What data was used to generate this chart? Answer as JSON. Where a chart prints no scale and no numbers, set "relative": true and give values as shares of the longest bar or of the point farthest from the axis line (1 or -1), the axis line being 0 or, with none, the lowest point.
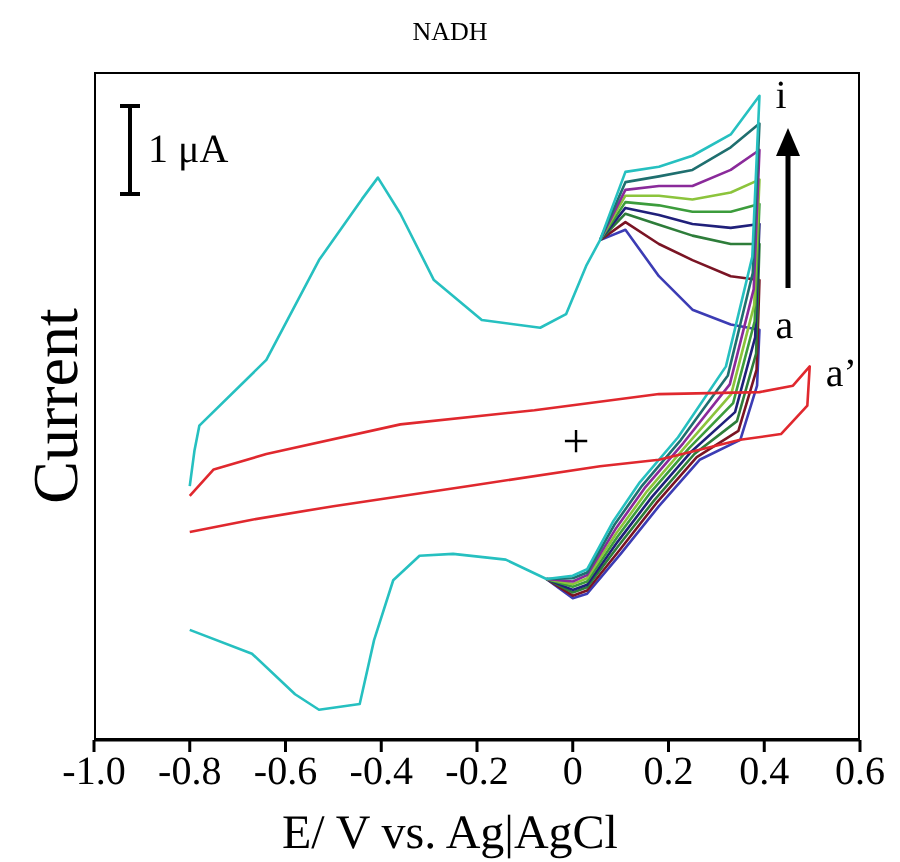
{
  "chart_data": {
    "type": "line",
    "title": "NADH",
    "xlabel": "E/ V vs. Ag|AgCl",
    "ylabel": "Current",
    "relative": true,
    "legend": false,
    "grid": false,
    "marker": "none",
    "line_style": "solid",
    "xlim": [
      -1.0,
      0.6
    ],
    "xticks": [
      {
        "value": -1.0,
        "label": "-1.0"
      },
      -0.8,
      -0.6,
      -0.4,
      -0.2,
      0,
      0.2,
      0.4,
      0.6
    ],
    "annotations": [
      "1 μA",
      "+"
    ],
    "series": [
      {
        "name": "a",
        "color": "#3c3cb4",
        "x": [
          0.057,
          0.11,
          0.18,
          0.25,
          0.33,
          0.39,
          0.385,
          0.35,
          0.265,
          0.18,
          0.1,
          0.03,
          0.0,
          -0.055
        ],
        "values": [
          0.776,
          0.792,
          0.72,
          0.668,
          0.645,
          0.637,
          0.55,
          0.466,
          0.435,
          0.363,
          0.289,
          0.227,
          0.22,
          0.25
        ]
      },
      {
        "color": "#7a1424",
        "x": [
          0.057,
          0.11,
          0.18,
          0.25,
          0.33,
          0.39,
          0.384,
          0.346,
          0.259,
          0.175,
          0.098,
          0.03,
          0.0,
          -0.055
        ],
        "values": [
          0.776,
          0.804,
          0.77,
          0.745,
          0.72,
          0.714,
          0.575,
          0.48,
          0.439,
          0.368,
          0.295,
          0.232,
          0.224,
          0.25
        ]
      },
      {
        "color": "#2e7d3a",
        "x": [
          0.057,
          0.11,
          0.18,
          0.25,
          0.33,
          0.39,
          0.383,
          0.343,
          0.254,
          0.17,
          0.096,
          0.03,
          0.0,
          -0.055
        ],
        "values": [
          0.776,
          0.817,
          0.8,
          0.783,
          0.77,
          0.77,
          0.6,
          0.495,
          0.444,
          0.372,
          0.302,
          0.237,
          0.229,
          0.25
        ]
      },
      {
        "color": "#20207a",
        "x": [
          0.057,
          0.11,
          0.18,
          0.25,
          0.33,
          0.39,
          0.381,
          0.339,
          0.248,
          0.165,
          0.094,
          0.03,
          0.0,
          -0.055
        ],
        "values": [
          0.776,
          0.826,
          0.815,
          0.801,
          0.795,
          0.801,
          0.625,
          0.509,
          0.448,
          0.377,
          0.308,
          0.241,
          0.233,
          0.25
        ]
      },
      {
        "color": "#3c9c3c",
        "x": [
          0.057,
          0.11,
          0.18,
          0.25,
          0.33,
          0.39,
          0.38,
          0.335,
          0.243,
          0.16,
          0.093,
          0.03,
          0.0,
          -0.055
        ],
        "values": [
          0.776,
          0.835,
          0.83,
          0.82,
          0.82,
          0.832,
          0.65,
          0.523,
          0.453,
          0.382,
          0.315,
          0.246,
          0.238,
          0.25
        ]
      },
      {
        "color": "#8cc43c",
        "x": [
          0.057,
          0.11,
          0.18,
          0.25,
          0.33,
          0.39,
          0.379,
          0.331,
          0.237,
          0.155,
          0.091,
          0.03,
          0.0,
          -0.055
        ],
        "values": [
          0.776,
          0.845,
          0.845,
          0.839,
          0.85,
          0.87,
          0.675,
          0.537,
          0.457,
          0.386,
          0.321,
          0.251,
          0.242,
          0.25
        ]
      },
      {
        "color": "#8a2a9a",
        "x": [
          0.057,
          0.11,
          0.18,
          0.25,
          0.33,
          0.39,
          0.378,
          0.328,
          0.231,
          0.15,
          0.089,
          0.03,
          0.0,
          -0.055
        ],
        "values": [
          0.776,
          0.854,
          0.86,
          0.86,
          0.885,
          0.916,
          0.7,
          0.552,
          0.461,
          0.391,
          0.327,
          0.256,
          0.246,
          0.25
        ]
      },
      {
        "color": "#1f6f6f",
        "x": [
          0.057,
          0.11,
          0.18,
          0.25,
          0.33,
          0.39,
          0.376,
          0.324,
          0.226,
          0.145,
          0.087,
          0.03,
          0.0,
          -0.055
        ],
        "values": [
          0.776,
          0.866,
          0.875,
          0.885,
          0.92,
          0.957,
          0.725,
          0.566,
          0.466,
          0.395,
          0.334,
          0.26,
          0.251,
          0.25
        ]
      },
      {
        "name": "i",
        "color": "#26c0c0",
        "x": [
          -0.8,
          -0.79,
          -0.78,
          -0.64,
          -0.53,
          -0.44,
          -0.407,
          -0.36,
          -0.29,
          -0.19,
          -0.068,
          -0.014,
          0.028,
          0.057,
          0.11,
          0.18,
          0.25,
          0.33,
          0.39,
          0.375,
          0.32,
          0.22,
          0.14,
          0.085,
          0.03,
          0.0,
          -0.055,
          -0.14,
          -0.25,
          -0.32,
          -0.375,
          -0.415,
          -0.445,
          -0.53,
          -0.58,
          -0.67,
          -0.8
        ],
        "values": [
          0.394,
          0.45,
          0.488,
          0.59,
          0.745,
          0.84,
          0.873,
          0.817,
          0.714,
          0.652,
          0.64,
          0.661,
          0.736,
          0.776,
          0.882,
          0.89,
          0.907,
          0.94,
          1.0,
          0.75,
          0.58,
          0.47,
          0.4,
          0.34,
          0.265,
          0.255,
          0.25,
          0.28,
          0.289,
          0.286,
          0.248,
          0.155,
          0.056,
          0.047,
          0.071,
          0.134,
          0.171
        ]
      },
      {
        "name": "a’",
        "color": "#e0282e",
        "x": [
          -0.8,
          -0.75,
          -0.64,
          -0.36,
          -0.08,
          0.18,
          0.39,
          0.46,
          0.495,
          0.49,
          0.435,
          0.35,
          0.18,
          0.057,
          -0.22,
          -0.5,
          -0.67,
          -0.8
        ],
        "values": [
          0.379,
          0.42,
          0.444,
          0.49,
          0.512,
          0.537,
          0.54,
          0.55,
          0.58,
          0.519,
          0.475,
          0.466,
          0.435,
          0.425,
          0.394,
          0.363,
          0.342,
          0.323
        ]
      }
    ]
  }
}
